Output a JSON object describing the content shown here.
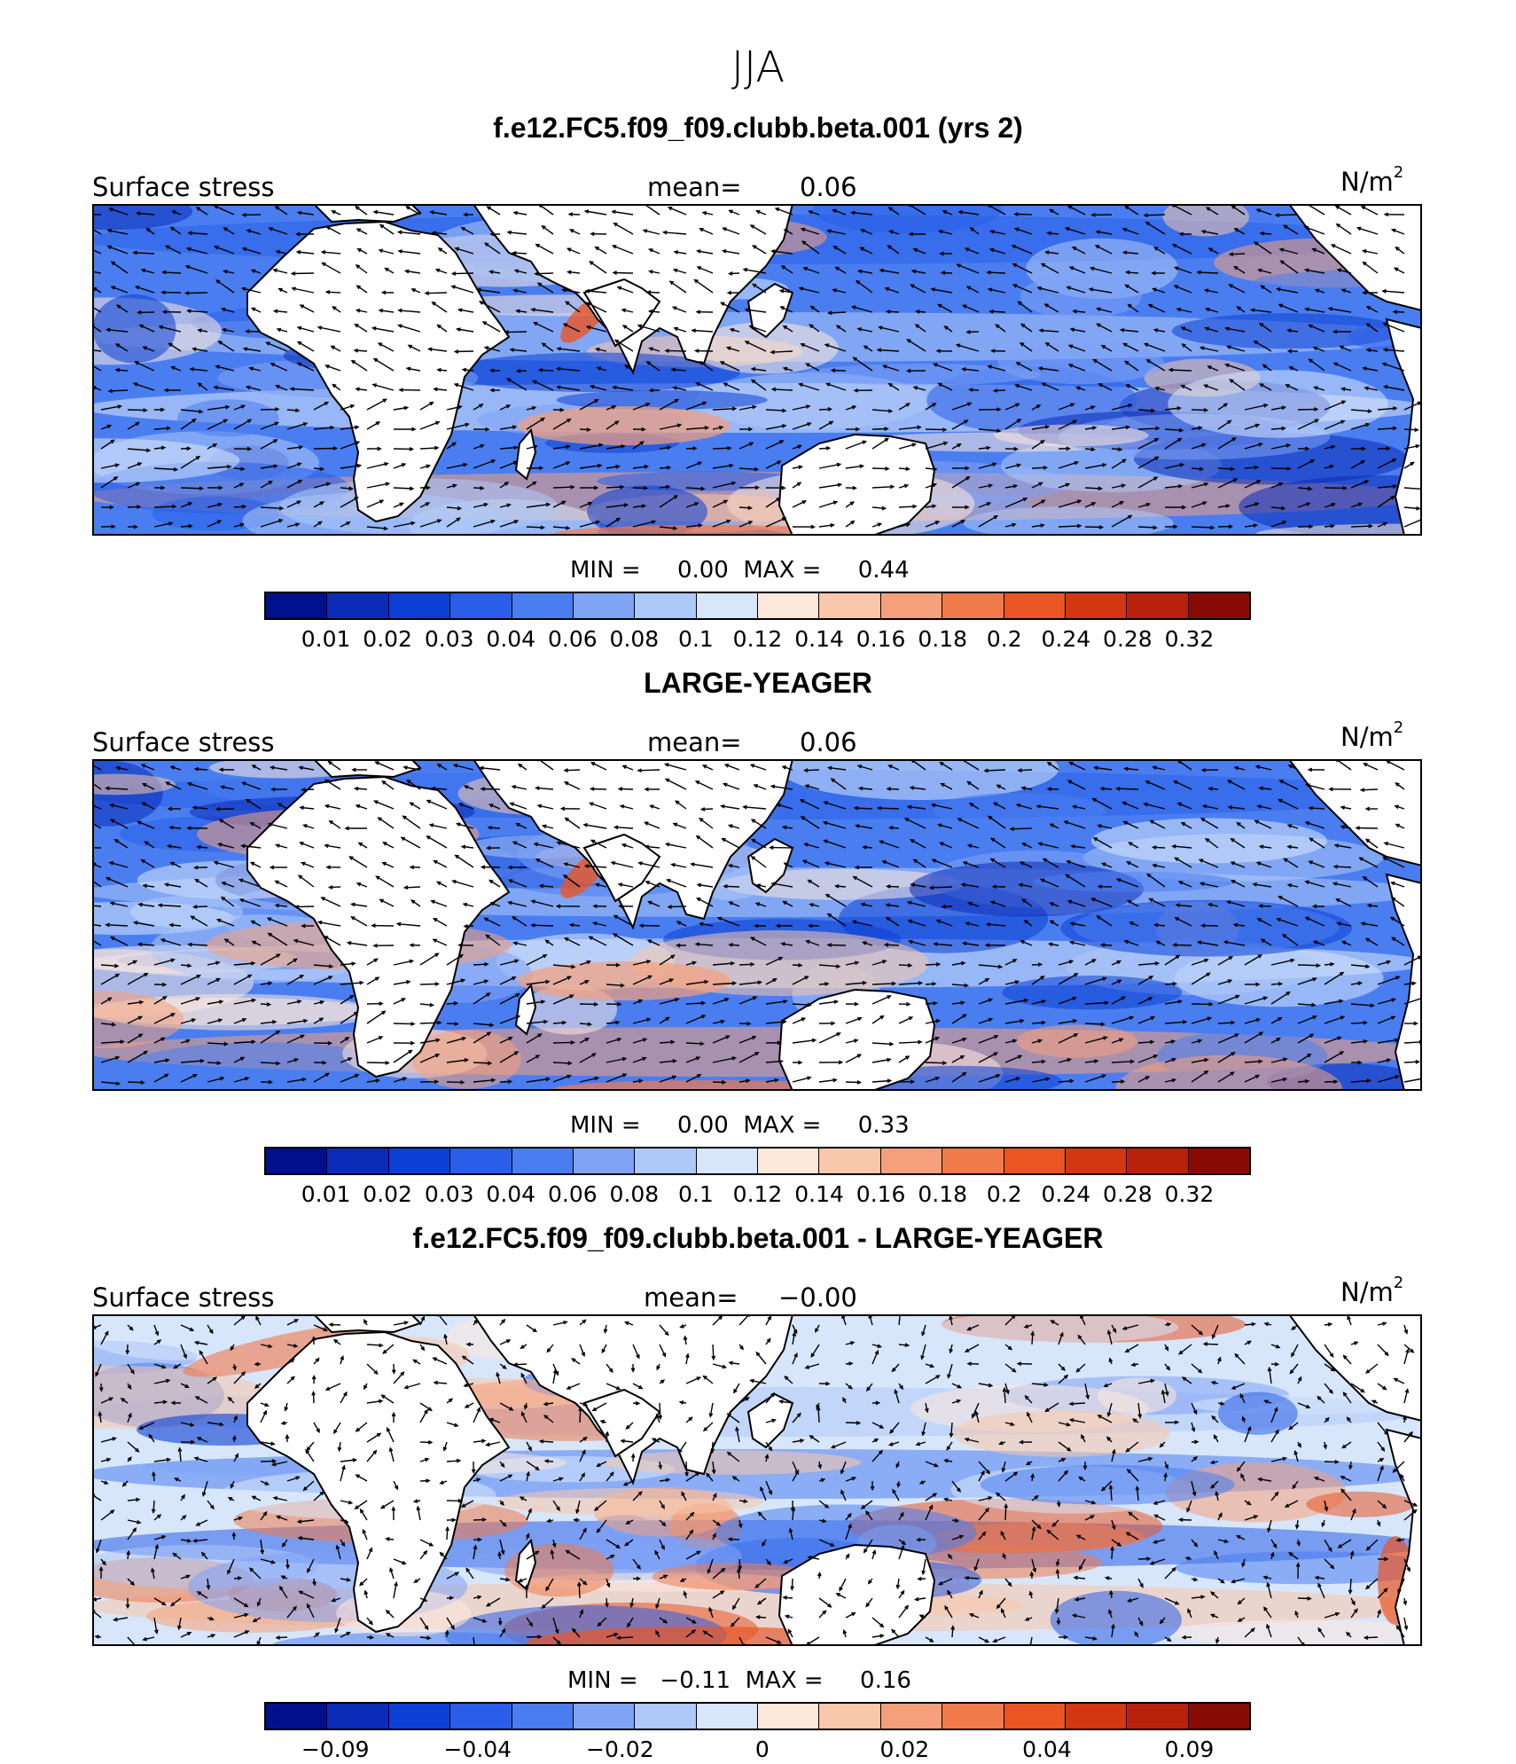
{
  "figure": {
    "season": "JJA"
  },
  "colorbar_colors_sequential": [
    "#00108c",
    "#0a2cb8",
    "#0b3fd6",
    "#2a5ee8",
    "#4a7ef0",
    "#7fa3f5",
    "#aec8f8",
    "#d7e6fb",
    "#fde8dc",
    "#f9c7aa",
    "#f5a07a",
    "#f17a4b",
    "#ea5524",
    "#d33712",
    "#b8210b",
    "#870b03"
  ],
  "panels": [
    {
      "title": "f.e12.FC5.f09_f09.clubb.beta.001 (yrs 2)",
      "left_label": "Surface stress",
      "mean_label": "mean=",
      "mean_value": "0.06",
      "units": "N/m",
      "units_sup": "2",
      "min_label": "MIN =",
      "min_value": "0.00",
      "max_label": "MAX =",
      "max_value": "0.44",
      "colorbar_ticks": [
        "0.01",
        "0.02",
        "0.03",
        "0.04",
        "0.06",
        "0.08",
        "0.1",
        "0.12",
        "0.14",
        "0.16",
        "0.18",
        "0.2",
        "0.24",
        "0.28",
        "0.32"
      ]
    },
    {
      "title": "LARGE-YEAGER",
      "left_label": "Surface stress",
      "mean_label": "mean=",
      "mean_value": "0.06",
      "units": "N/m",
      "units_sup": "2",
      "min_label": "MIN =",
      "min_value": "0.00",
      "max_label": "MAX =",
      "max_value": "0.33",
      "colorbar_ticks": [
        "0.01",
        "0.02",
        "0.03",
        "0.04",
        "0.06",
        "0.08",
        "0.1",
        "0.12",
        "0.14",
        "0.16",
        "0.18",
        "0.2",
        "0.24",
        "0.28",
        "0.32"
      ]
    },
    {
      "title": "f.e12.FC5.f09_f09.clubb.beta.001 - LARGE-YEAGER",
      "left_label": "Surface stress",
      "mean_label": "mean=",
      "mean_value": "−0.00",
      "units": "N/m",
      "units_sup": "2",
      "min_label": "MIN =",
      "min_value": "−0.11",
      "max_label": "MAX =",
      "max_value": "0.16",
      "colorbar_ticks": [
        "−0.09",
        "",
        "−0.04",
        "",
        "−0.02",
        "",
        "0",
        "",
        "0.02",
        "",
        "0.04",
        "",
        "0.09"
      ]
    }
  ],
  "chart_data": [
    {
      "type": "heatmap",
      "title": "f.e12.FC5.f09_f09.clubb.beta.001 (yrs 2)",
      "variable": "Surface stress",
      "units": "N/m2",
      "mean": 0.06,
      "min": 0.0,
      "max": 0.44,
      "contour_levels": [
        0.01,
        0.02,
        0.03,
        0.04,
        0.06,
        0.08,
        0.1,
        0.12,
        0.14,
        0.16,
        0.18,
        0.2,
        0.24,
        0.28,
        0.32
      ]
    },
    {
      "type": "heatmap",
      "title": "LARGE-YEAGER",
      "variable": "Surface stress",
      "units": "N/m2",
      "mean": 0.06,
      "min": 0.0,
      "max": 0.33,
      "contour_levels": [
        0.01,
        0.02,
        0.03,
        0.04,
        0.06,
        0.08,
        0.1,
        0.12,
        0.14,
        0.16,
        0.18,
        0.2,
        0.24,
        0.28,
        0.32
      ]
    },
    {
      "type": "heatmap",
      "title": "f.e12.FC5.f09_f09.clubb.beta.001 - LARGE-YEAGER",
      "variable": "Surface stress",
      "units": "N/m2",
      "mean": -0.0,
      "min": -0.11,
      "max": 0.16,
      "contour_levels": [
        -0.09,
        -0.04,
        -0.02,
        0,
        0.02,
        0.04,
        0.09
      ]
    }
  ]
}
